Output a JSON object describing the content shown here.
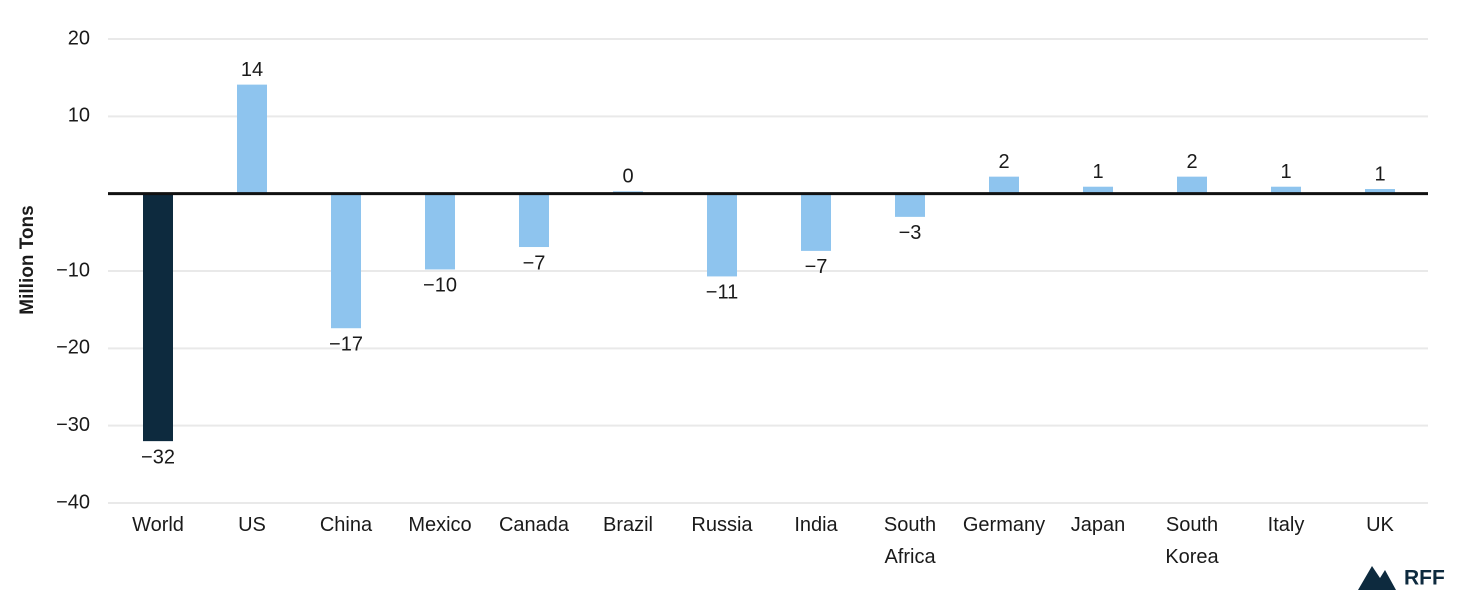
{
  "chart_data": {
    "type": "bar",
    "y_label": "Million Tons",
    "logo": "RFF",
    "categories": [
      "World",
      "US",
      "China",
      "Mexico",
      "Canada",
      "Brazil",
      "Russia",
      "India",
      "South Africa",
      "Germany",
      "Japan",
      "South Korea",
      "Italy",
      "UK"
    ],
    "values": [
      -32,
      14.1,
      -17.4,
      -9.8,
      -6.9,
      0.3,
      -10.7,
      -7.4,
      -3,
      2.2,
      0.9,
      2.2,
      0.9,
      0.6
    ],
    "value_labels": [
      "−32",
      "14",
      "−17",
      "−10",
      "−7",
      "0",
      "−11",
      "−7",
      "−3",
      "2",
      "1",
      "2",
      "1",
      "1"
    ],
    "colors": [
      "#0d2a3e",
      "#8ec4ee",
      "#8ec4ee",
      "#8ec4ee",
      "#8ec4ee",
      "#8ec4ee",
      "#8ec4ee",
      "#8ec4ee",
      "#8ec4ee",
      "#8ec4ee",
      "#8ec4ee",
      "#8ec4ee",
      "#8ec4ee",
      "#8ec4ee"
    ],
    "ylim": [
      -40,
      20
    ],
    "yticks": [
      {
        "value": -40,
        "label": "−40"
      },
      {
        "value": -30,
        "label": "−30"
      },
      {
        "value": -20,
        "label": "−20"
      },
      {
        "value": -10,
        "label": "−10"
      },
      10,
      20
    ],
    "grid": true
  }
}
